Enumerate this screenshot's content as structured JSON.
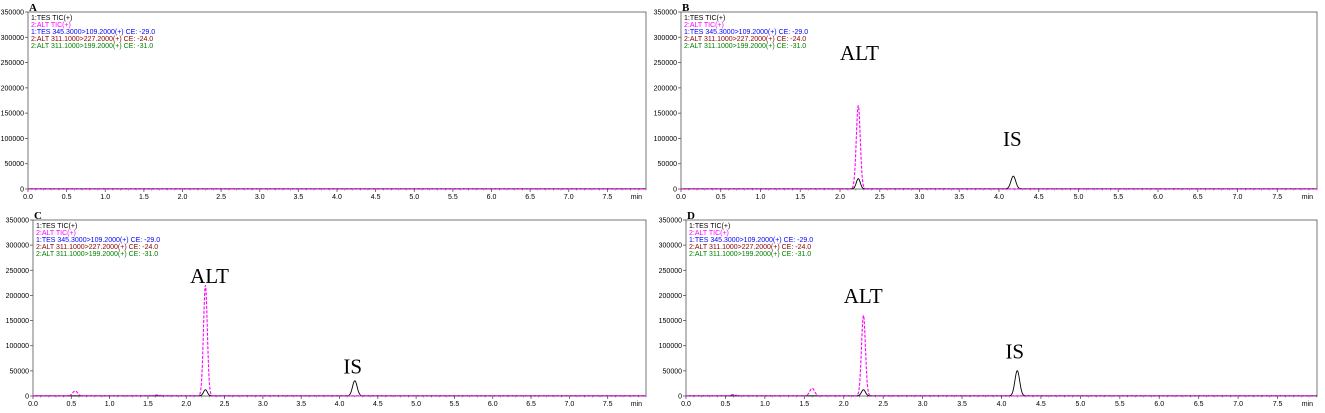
{
  "colors": {
    "black": "#000000",
    "magenta": "#ff00ff",
    "blue": "#0000ff",
    "darkred": "#8b0000",
    "green": "#008000",
    "axis": "#555555",
    "grid": "#c8c8c8"
  },
  "chart_data": [
    {
      "type": "line",
      "panel": "A",
      "x_unit": "min",
      "xlim": [
        0,
        8
      ],
      "ylim": [
        0,
        350000
      ],
      "x_ticks": [
        "0.0",
        "0.5",
        "1.0",
        "1.5",
        "2.0",
        "2.5",
        "3.0",
        "3.5",
        "4.0",
        "4.5",
        "5.0",
        "5.5",
        "6.0",
        "6.5",
        "7.0",
        "7.5"
      ],
      "y_ticks": [
        "0",
        "50000",
        "100000",
        "150000",
        "200000",
        "250000",
        "300000",
        "350000"
      ],
      "legend": [
        {
          "text": "1:TES TIC(+)",
          "color": "#000000"
        },
        {
          "text": "2:ALT TIC(+)",
          "color": "#ff00ff"
        },
        {
          "text": "1:TES 345.3000>109.2000(+) CE: -29.0",
          "color": "#0000ff"
        },
        {
          "text": "2:ALT 311.1000>227.2000(+) CE: -24.0",
          "color": "#8b0000"
        },
        {
          "text": "2:ALT 311.1000>199.2000(+) CE: -31.0",
          "color": "#008000"
        }
      ],
      "annotations": [],
      "series": [
        {
          "color": "#000000",
          "dash": false,
          "peaks": []
        },
        {
          "color": "#ff00ff",
          "dash": true,
          "peaks": []
        }
      ]
    },
    {
      "type": "line",
      "panel": "B",
      "x_unit": "min",
      "xlim": [
        0,
        8
      ],
      "ylim": [
        0,
        350000
      ],
      "x_ticks": [
        "0.0",
        "0.5",
        "1.0",
        "1.5",
        "2.0",
        "2.5",
        "3.0",
        "3.5",
        "4.0",
        "4.5",
        "5.0",
        "5.5",
        "6.0",
        "6.5",
        "7.0",
        "7.5"
      ],
      "y_ticks": [
        "0",
        "50000",
        "100000",
        "150000",
        "200000",
        "250000",
        "300000",
        "350000"
      ],
      "legend": [
        {
          "text": "1:TES TIC(+)",
          "color": "#000000"
        },
        {
          "text": "2:ALT TIC(+)",
          "color": "#ff00ff"
        },
        {
          "text": "1:TES 345.3000>109.2000(+) CE: -29.0",
          "color": "#0000ff"
        },
        {
          "text": "2:ALT 311.1000>227.2000(+) CE: -24.0",
          "color": "#8b0000"
        },
        {
          "text": "2:ALT 311.1000>199.2000(+) CE: -31.0",
          "color": "#008000"
        }
      ],
      "annotations": [
        {
          "text": "ALT",
          "x": 2.0,
          "y": 255000
        },
        {
          "text": "IS",
          "x": 4.05,
          "y": 85000
        }
      ],
      "series": [
        {
          "color": "#000000",
          "dash": false,
          "peaks": [
            {
              "x": 2.23,
              "y": 20000,
              "w": 0.025
            },
            {
              "x": 4.18,
              "y": 25000,
              "w": 0.03
            }
          ]
        },
        {
          "color": "#ff00ff",
          "dash": true,
          "peaks": [
            {
              "x": 2.23,
              "y": 165000,
              "w": 0.025
            }
          ]
        }
      ]
    },
    {
      "type": "line",
      "panel": "C",
      "x_unit": "min",
      "xlim": [
        0,
        8
      ],
      "ylim": [
        0,
        350000
      ],
      "x_ticks": [
        "0.0",
        "0.5",
        "1.0",
        "1.5",
        "2.0",
        "2.5",
        "3.0",
        "3.5",
        "4.0",
        "4.5",
        "5.0",
        "5.5",
        "6.0",
        "6.5",
        "7.0",
        "7.5"
      ],
      "y_ticks": [
        "0",
        "50000",
        "100000",
        "150000",
        "200000",
        "250000",
        "300000",
        "350000"
      ],
      "legend": [
        {
          "text": "1:TES TIC(+)",
          "color": "#000000"
        },
        {
          "text": "2:ALT TIC(+)",
          "color": "#ff00ff"
        },
        {
          "text": "1:TES 345.3000>109.2000(+) CE: -29.0",
          "color": "#0000ff"
        },
        {
          "text": "2:ALT 311.1000>227.2000(+) CE: -24.0",
          "color": "#8b0000"
        },
        {
          "text": "2:ALT 311.1000>199.2000(+) CE: -31.0",
          "color": "#008000"
        }
      ],
      "annotations": [
        {
          "text": "ALT",
          "x": 2.05,
          "y": 225000
        },
        {
          "text": "IS",
          "x": 4.05,
          "y": 45000
        }
      ],
      "series": [
        {
          "color": "#000000",
          "dash": false,
          "peaks": [
            {
              "x": 2.25,
              "y": 12000,
              "w": 0.025
            },
            {
              "x": 4.2,
              "y": 30000,
              "w": 0.03
            }
          ]
        },
        {
          "color": "#ff00ff",
          "dash": true,
          "peaks": [
            {
              "x": 0.55,
              "y": 10000,
              "w": 0.03
            },
            {
              "x": 1.62,
              "y": 1500,
              "w": 0.04
            },
            {
              "x": 2.25,
              "y": 220000,
              "w": 0.025
            }
          ]
        }
      ]
    },
    {
      "type": "line",
      "panel": "D",
      "x_unit": "min",
      "xlim": [
        0,
        8
      ],
      "ylim": [
        0,
        350000
      ],
      "x_ticks": [
        "0.0",
        "0.5",
        "1.0",
        "1.5",
        "2.0",
        "2.5",
        "3.0",
        "3.5",
        "4.0",
        "4.5",
        "5.0",
        "5.5",
        "6.0",
        "6.5",
        "7.0",
        "7.5"
      ],
      "y_ticks": [
        "0",
        "50000",
        "100000",
        "150000",
        "200000",
        "250000",
        "300000",
        "350000"
      ],
      "legend": [
        {
          "text": "1:TES TIC(+)",
          "color": "#000000"
        },
        {
          "text": "2:ALT TIC(+)",
          "color": "#ff00ff"
        },
        {
          "text": "1:TES 345.3000>109.2000(+) CE: -29.0",
          "color": "#0000ff"
        },
        {
          "text": "2:ALT 311.1000>227.2000(+) CE: -24.0",
          "color": "#8b0000"
        },
        {
          "text": "2:ALT 311.1000>199.2000(+) CE: -31.0",
          "color": "#008000"
        }
      ],
      "annotations": [
        {
          "text": "ALT",
          "x": 2.0,
          "y": 185000
        },
        {
          "text": "IS",
          "x": 4.05,
          "y": 75000
        }
      ],
      "series": [
        {
          "color": "#000000",
          "dash": false,
          "peaks": [
            {
              "x": 2.25,
              "y": 12000,
              "w": 0.025
            },
            {
              "x": 4.2,
              "y": 50000,
              "w": 0.03
            }
          ]
        },
        {
          "color": "#ff00ff",
          "dash": true,
          "peaks": [
            {
              "x": 0.6,
              "y": 2500,
              "w": 0.03
            },
            {
              "x": 1.6,
              "y": 15000,
              "w": 0.03
            },
            {
              "x": 2.25,
              "y": 160000,
              "w": 0.025
            }
          ]
        }
      ]
    }
  ]
}
